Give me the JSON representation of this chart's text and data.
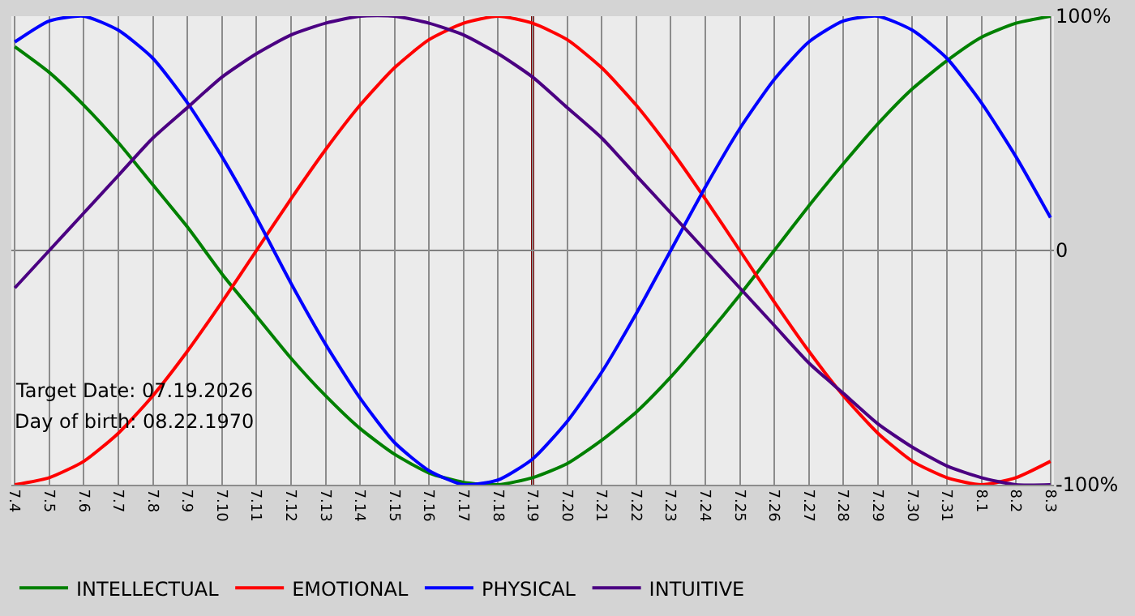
{
  "chart_data": {
    "type": "line",
    "categories": [
      "7.4",
      "7.5",
      "7.6",
      "7.7",
      "7.8",
      "7.9",
      "7.10",
      "7.11",
      "7.12",
      "7.13",
      "7.14",
      "7.15",
      "7.16",
      "7.17",
      "7.18",
      "7.19",
      "7.20",
      "7.21",
      "7.22",
      "7.23",
      "7.24",
      "7.25",
      "7.26",
      "7.27",
      "7.28",
      "7.29",
      "7.30",
      "7.31",
      "8.1",
      "8.2",
      "8.3"
    ],
    "series": [
      {
        "name": "INTELLECTUAL",
        "color": "#008000",
        "values": [
          87,
          76,
          62,
          46,
          28,
          10,
          -10,
          -28,
          -46,
          -62,
          -76,
          -87,
          -95,
          -99,
          -100,
          -97,
          -91,
          -81,
          -69,
          -54,
          -37,
          -19,
          0,
          19,
          37,
          54,
          69,
          81,
          91,
          97,
          100
        ]
      },
      {
        "name": "EMOTIONAL",
        "color": "#ff0000",
        "values": [
          -100,
          -97,
          -90,
          -78,
          -62,
          -43,
          -22,
          0,
          22,
          43,
          62,
          78,
          90,
          97,
          100,
          97,
          90,
          78,
          62,
          43,
          22,
          0,
          -22,
          -43,
          -62,
          -78,
          -90,
          -97,
          -100,
          -97,
          -90
        ]
      },
      {
        "name": "PHYSICAL",
        "color": "#0000ff",
        "values": [
          89,
          98,
          100,
          94,
          82,
          63,
          40,
          14,
          -14,
          -40,
          -63,
          -82,
          -94,
          -100,
          -98,
          -89,
          -73,
          -52,
          -27,
          0,
          27,
          52,
          73,
          89,
          98,
          100,
          94,
          82,
          63,
          40,
          14
        ]
      },
      {
        "name": "INTUITIVE",
        "color": "#4b0082",
        "values": [
          -16,
          0,
          16,
          32,
          48,
          61,
          74,
          84,
          92,
          97,
          100,
          100,
          97,
          92,
          84,
          74,
          61,
          48,
          32,
          16,
          0,
          -16,
          -32,
          -48,
          -61,
          -74,
          -84,
          -92,
          -97,
          -100,
          -100
        ]
      }
    ],
    "ylim": [
      -100,
      100
    ],
    "yticks": [
      {
        "value": 100,
        "label": "100%"
      },
      0,
      {
        "value": -100,
        "label": "-100%"
      }
    ],
    "ref_lines": [
      {
        "axis": "x",
        "value": "7.19",
        "color": "#800000"
      },
      {
        "axis": "y",
        "value": 0,
        "color": "#808080"
      }
    ],
    "annotations": [
      "Target Date: 07.19.2026",
      "Day of birth: 08.22.1970"
    ],
    "grid": "x",
    "legend": "bottom",
    "marker": "none",
    "line_style": "solid"
  }
}
